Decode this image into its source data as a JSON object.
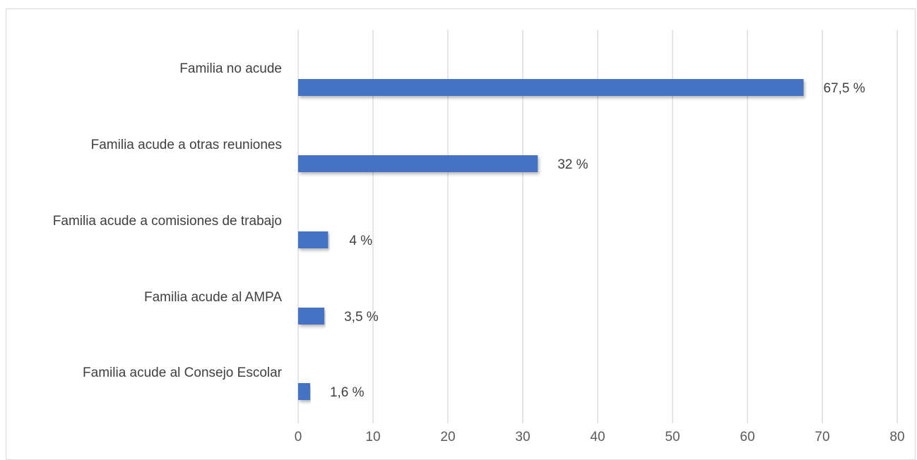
{
  "chart_data": {
    "type": "bar",
    "orientation": "horizontal",
    "categories": [
      "Familia no acude",
      "Familia acude a otras reuniones",
      "Familia acude a comisiones de trabajo",
      "Familia acude al AMPA",
      "Familia acude al Consejo Escolar"
    ],
    "values": [
      67.5,
      32,
      4,
      3.5,
      1.6
    ],
    "data_labels": [
      "67,5 %",
      "32 %",
      "4 %",
      "3,5 %",
      "1,6 %"
    ],
    "xlim": [
      0,
      80
    ],
    "xticks": [
      0,
      10,
      20,
      30,
      40,
      50,
      60,
      70,
      80
    ],
    "grid": true,
    "legend": "none",
    "bar_color": "#4472c4",
    "title": "",
    "xlabel": "",
    "ylabel": ""
  }
}
